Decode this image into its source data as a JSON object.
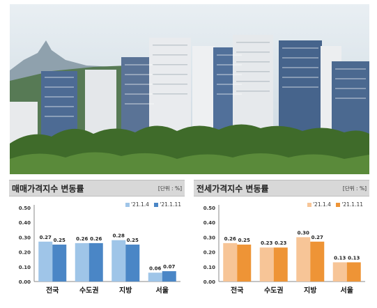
{
  "colors": {
    "sky": "#d9e6ef",
    "tower_blue": "#4d6b94",
    "tower_white": "#eef0f2",
    "trees": "#3f6b2a",
    "left_series": [
      "#9fc5e8",
      "#4a86c6"
    ],
    "right_series": [
      "#f7c597",
      "#ee9436"
    ],
    "header_bg": "#d8d8d8"
  },
  "photo": {
    "subject": "apartment-complex-skyline"
  },
  "chart_data": [
    {
      "type": "bar",
      "title": "매매가격지수 변동률",
      "unit_label": "[단위 : %]",
      "categories": [
        "전국",
        "수도권",
        "지방",
        "서울"
      ],
      "series": [
        {
          "name": "'21.1.4",
          "values": [
            0.27,
            0.26,
            0.28,
            0.06
          ]
        },
        {
          "name": "'21.1.11",
          "values": [
            0.25,
            0.26,
            0.25,
            0.07
          ]
        }
      ],
      "ylim": [
        0,
        0.5
      ],
      "yticks": [
        "0.00",
        "0.10",
        "0.20",
        "0.30",
        "0.40",
        "0.50"
      ],
      "legend_position": "top-right",
      "grid": false
    },
    {
      "type": "bar",
      "title": "전세가격지수 변동률",
      "unit_label": "[단위 : %]",
      "categories": [
        "전국",
        "수도권",
        "지방",
        "서울"
      ],
      "series": [
        {
          "name": "'21.1.4",
          "values": [
            0.26,
            0.23,
            0.3,
            0.13
          ]
        },
        {
          "name": "'21.1.11",
          "values": [
            0.25,
            0.23,
            0.27,
            0.13
          ]
        }
      ],
      "ylim": [
        0,
        0.5
      ],
      "yticks": [
        "0.00",
        "0.10",
        "0.20",
        "0.30",
        "0.40",
        "0.50"
      ],
      "legend_position": "top-right",
      "grid": false
    }
  ]
}
